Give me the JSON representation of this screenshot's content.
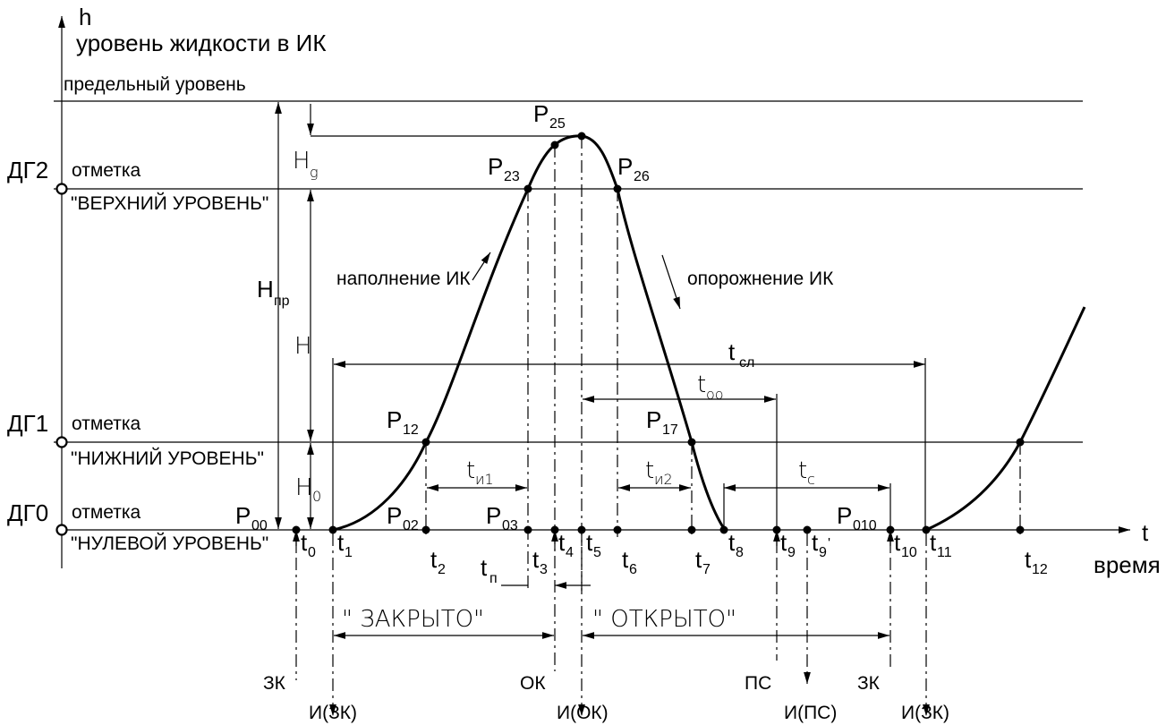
{
  "axes": {
    "y_symbol": "h",
    "y_title": "уровень жидкости в ИК",
    "limit_label": "предельный уровень",
    "x_symbol": "t",
    "x_title": "время"
  },
  "sensors": [
    {
      "name": "ДГ2",
      "mark": "отметка",
      "level": "\"ВЕРХНИЙ УРОВЕНЬ\""
    },
    {
      "name": "ДГ1",
      "mark": "отметка",
      "level": "\"НИЖНИЙ УРОВЕНЬ\""
    },
    {
      "name": "ДГ0",
      "mark": "отметка",
      "level": "\"НУЛЕВОЙ УРОВЕНЬ\""
    }
  ],
  "dims": {
    "hg": {
      "main": "H",
      "sub": "g"
    },
    "hnp": {
      "main": "H",
      "sub": "пр"
    },
    "h": "H",
    "h0": {
      "main": "H",
      "sub": "0"
    }
  },
  "points": [
    {
      "main": "P",
      "sub": "00"
    },
    {
      "main": "P",
      "sub": "02"
    },
    {
      "main": "P",
      "sub": "03"
    },
    {
      "main": "P",
      "sub": "12"
    },
    {
      "main": "P",
      "sub": "23"
    },
    {
      "main": "P",
      "sub": "25"
    },
    {
      "main": "P",
      "sub": "26"
    },
    {
      "main": "P",
      "sub": "17"
    },
    {
      "main": "P",
      "sub": "010"
    }
  ],
  "times": [
    {
      "main": "t",
      "sub": "0"
    },
    {
      "main": "t",
      "sub": "1"
    },
    {
      "main": "t",
      "sub": "2"
    },
    {
      "main": "t",
      "sub": "3"
    },
    {
      "main": "t",
      "sub": "4"
    },
    {
      "main": "t",
      "sub": "5"
    },
    {
      "main": "t",
      "sub": "6"
    },
    {
      "main": "t",
      "sub": "7"
    },
    {
      "main": "t",
      "sub": "8"
    },
    {
      "main": "t",
      "sub": "9"
    },
    {
      "main": "t",
      "sub": "9",
      "prime": "'"
    },
    {
      "main": "t",
      "sub": "10"
    },
    {
      "main": "t",
      "sub": "11"
    },
    {
      "main": "t",
      "sub": "12"
    }
  ],
  "intervals": {
    "tsl": {
      "main": "t",
      "sub": "сл"
    },
    "too": {
      "main": "t",
      "sub": "оо"
    },
    "ti1": {
      "main": "t",
      "sub": "и1"
    },
    "ti2": {
      "main": "t",
      "sub": "и2"
    },
    "tc": {
      "main": "t",
      "sub": "с"
    },
    "tp": {
      "main": "t",
      "sub": "п"
    }
  },
  "annotations": {
    "filling": "наполнение ИК",
    "emptying": "опорожнение ИК",
    "closed": "\" ЗАКРЫТО\"",
    "opened": "\" ОТКРЫТО\""
  },
  "events": [
    "ЗК",
    "ОК",
    "ПС",
    "ЗК"
  ],
  "impulses": [
    "И(ЗК)",
    "И(ОК)",
    "И(ПС)",
    "И(ЗК)"
  ]
}
